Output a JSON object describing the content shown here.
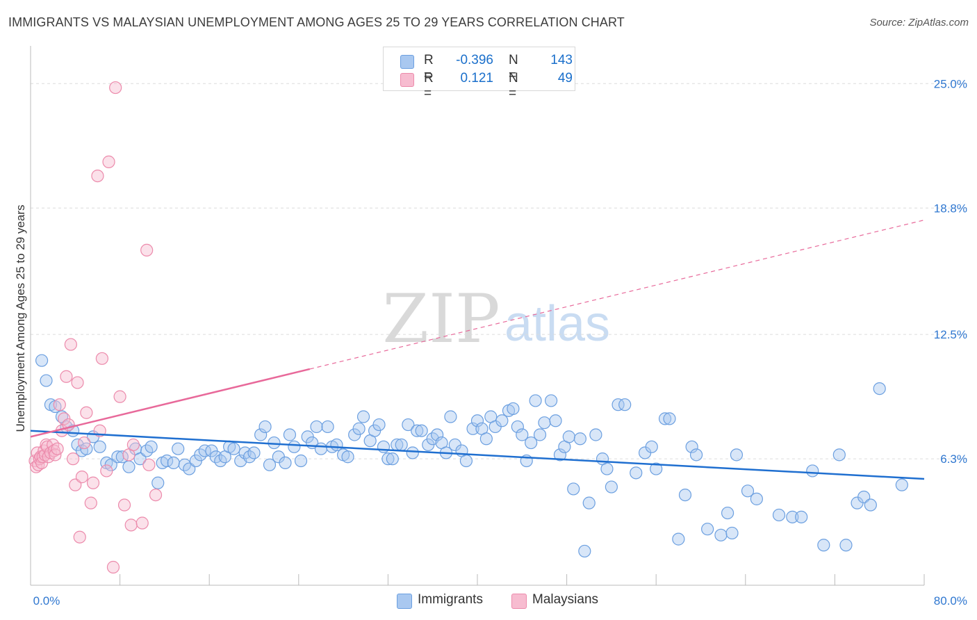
{
  "title": "IMMIGRANTS VS MALAYSIAN UNEMPLOYMENT AMONG AGES 25 TO 29 YEARS CORRELATION CHART",
  "source": "Source: ZipAtlas.com",
  "watermark": {
    "zip": "ZIP",
    "atlas": "atlas"
  },
  "legend": {
    "rows": [
      {
        "r_label": "R =",
        "r_value": "-0.396",
        "n_label": "N =",
        "n_value": "143",
        "color": "#a9c8f0",
        "border": "#6b9fe0"
      },
      {
        "r_label": "R =",
        "r_value": "0.121",
        "n_label": "N =",
        "n_value": "49",
        "color": "#f7bcd0",
        "border": "#ec8aab"
      }
    ]
  },
  "bottom_legend": [
    {
      "label": "Immigrants",
      "color": "#a9c8f0",
      "border": "#6b9fe0"
    },
    {
      "label": "Malaysians",
      "color": "#f7bcd0",
      "border": "#ec8aab"
    }
  ],
  "chart_data": {
    "type": "scatter",
    "title": "IMMIGRANTS VS MALAYSIAN UNEMPLOYMENT AMONG AGES 25 TO 29 YEARS CORRELATION CHART",
    "xlabel": "",
    "ylabel": "Unemployment Among Ages 25 to 29 years",
    "xlim": [
      0,
      80
    ],
    "ylim": [
      0,
      26.5
    ],
    "x_tick_labels": [
      "0.0%",
      "80.0%"
    ],
    "y_ticks": [
      6.3,
      12.5,
      18.8,
      25.0
    ],
    "y_tick_labels": [
      "6.3%",
      "12.5%",
      "18.8%",
      "25.0%"
    ],
    "grid": true,
    "legend_position": "top-center",
    "series": [
      {
        "name": "Immigrants",
        "color": "#6b9fe0",
        "fill": "#a9c8f0",
        "trend": {
          "x0": 0,
          "y0": 7.7,
          "x1": 80,
          "y1": 5.3,
          "dashed_from": 80
        },
        "points": [
          [
            1.0,
            11.2
          ],
          [
            1.4,
            10.2
          ],
          [
            1.8,
            9.0
          ],
          [
            2.2,
            8.9
          ],
          [
            2.8,
            8.4
          ],
          [
            3.2,
            7.9
          ],
          [
            3.8,
            7.7
          ],
          [
            4.2,
            7.0
          ],
          [
            4.6,
            6.7
          ],
          [
            5.0,
            6.8
          ],
          [
            5.6,
            7.4
          ],
          [
            6.2,
            6.9
          ],
          [
            6.8,
            6.1
          ],
          [
            7.2,
            6.0
          ],
          [
            7.8,
            6.4
          ],
          [
            8.2,
            6.4
          ],
          [
            8.8,
            5.9
          ],
          [
            9.4,
            6.8
          ],
          [
            9.8,
            6.3
          ],
          [
            10.4,
            6.7
          ],
          [
            10.8,
            6.9
          ],
          [
            11.4,
            5.1
          ],
          [
            11.8,
            6.1
          ],
          [
            12.2,
            6.2
          ],
          [
            12.8,
            6.1
          ],
          [
            13.2,
            6.8
          ],
          [
            13.8,
            6.0
          ],
          [
            14.2,
            5.8
          ],
          [
            14.8,
            6.2
          ],
          [
            15.2,
            6.5
          ],
          [
            15.6,
            6.7
          ],
          [
            16.2,
            6.7
          ],
          [
            16.6,
            6.4
          ],
          [
            17.0,
            6.2
          ],
          [
            17.4,
            6.4
          ],
          [
            17.8,
            6.9
          ],
          [
            18.2,
            6.8
          ],
          [
            18.8,
            6.2
          ],
          [
            19.2,
            6.6
          ],
          [
            19.6,
            6.4
          ],
          [
            20.0,
            6.6
          ],
          [
            20.6,
            7.5
          ],
          [
            21.0,
            7.9
          ],
          [
            21.4,
            6.0
          ],
          [
            21.8,
            7.1
          ],
          [
            22.2,
            6.4
          ],
          [
            22.8,
            6.1
          ],
          [
            23.2,
            7.5
          ],
          [
            23.6,
            6.9
          ],
          [
            24.2,
            6.2
          ],
          [
            24.8,
            7.4
          ],
          [
            25.2,
            7.1
          ],
          [
            25.6,
            7.9
          ],
          [
            26.0,
            6.8
          ],
          [
            26.6,
            7.9
          ],
          [
            27.0,
            6.9
          ],
          [
            27.4,
            7.0
          ],
          [
            28.0,
            6.5
          ],
          [
            28.4,
            6.4
          ],
          [
            29.0,
            7.5
          ],
          [
            29.4,
            7.8
          ],
          [
            29.8,
            8.4
          ],
          [
            30.4,
            7.2
          ],
          [
            30.8,
            7.7
          ],
          [
            31.2,
            8.0
          ],
          [
            31.6,
            6.9
          ],
          [
            32.0,
            6.3
          ],
          [
            32.4,
            6.3
          ],
          [
            32.8,
            7.0
          ],
          [
            33.2,
            7.0
          ],
          [
            33.8,
            8.0
          ],
          [
            34.2,
            6.6
          ],
          [
            34.6,
            7.7
          ],
          [
            35.0,
            7.7
          ],
          [
            35.6,
            7.0
          ],
          [
            36.0,
            7.3
          ],
          [
            36.4,
            7.5
          ],
          [
            36.8,
            7.1
          ],
          [
            37.2,
            6.6
          ],
          [
            37.6,
            8.4
          ],
          [
            38.0,
            7.0
          ],
          [
            38.6,
            6.7
          ],
          [
            39.0,
            6.2
          ],
          [
            39.6,
            7.8
          ],
          [
            40.0,
            8.2
          ],
          [
            40.4,
            7.8
          ],
          [
            40.8,
            7.3
          ],
          [
            41.2,
            8.4
          ],
          [
            41.6,
            7.9
          ],
          [
            42.2,
            8.2
          ],
          [
            42.8,
            8.7
          ],
          [
            43.2,
            8.8
          ],
          [
            43.6,
            7.9
          ],
          [
            44.0,
            7.5
          ],
          [
            44.4,
            6.2
          ],
          [
            44.8,
            7.1
          ],
          [
            45.2,
            9.2
          ],
          [
            45.6,
            7.5
          ],
          [
            46.0,
            8.1
          ],
          [
            46.6,
            9.2
          ],
          [
            47.0,
            8.2
          ],
          [
            47.4,
            6.5
          ],
          [
            47.8,
            6.9
          ],
          [
            48.2,
            7.4
          ],
          [
            48.6,
            4.8
          ],
          [
            49.2,
            7.3
          ],
          [
            49.6,
            1.7
          ],
          [
            50.0,
            4.1
          ],
          [
            50.6,
            7.5
          ],
          [
            51.2,
            6.3
          ],
          [
            51.6,
            5.8
          ],
          [
            52.0,
            4.9
          ],
          [
            52.6,
            9.0
          ],
          [
            53.2,
            9.0
          ],
          [
            54.2,
            5.6
          ],
          [
            55.0,
            6.6
          ],
          [
            55.6,
            6.9
          ],
          [
            56.0,
            5.8
          ],
          [
            56.8,
            8.3
          ],
          [
            57.2,
            8.3
          ],
          [
            58.0,
            2.3
          ],
          [
            58.6,
            4.5
          ],
          [
            59.2,
            6.9
          ],
          [
            59.6,
            6.5
          ],
          [
            60.6,
            2.8
          ],
          [
            61.8,
            2.5
          ],
          [
            62.4,
            3.6
          ],
          [
            62.8,
            2.6
          ],
          [
            63.2,
            6.5
          ],
          [
            64.2,
            4.7
          ],
          [
            65.0,
            4.3
          ],
          [
            67.0,
            3.5
          ],
          [
            68.2,
            3.4
          ],
          [
            69.0,
            3.4
          ],
          [
            70.0,
            5.7
          ],
          [
            71.0,
            2.0
          ],
          [
            72.4,
            6.5
          ],
          [
            73.0,
            2.0
          ],
          [
            74.0,
            4.1
          ],
          [
            74.6,
            4.4
          ],
          [
            75.2,
            4.0
          ],
          [
            76.0,
            9.8
          ],
          [
            78.0,
            5.0
          ]
        ]
      },
      {
        "name": "Malaysians",
        "color": "#ec8aab",
        "fill": "#f7bcd0",
        "trend": {
          "x0": 0,
          "y0": 7.4,
          "x1": 80,
          "y1": 18.2,
          "dashed_from": 25
        },
        "points": [
          [
            0.4,
            6.2
          ],
          [
            0.5,
            5.9
          ],
          [
            0.6,
            6.6
          ],
          [
            0.7,
            6.0
          ],
          [
            0.8,
            6.3
          ],
          [
            0.9,
            6.4
          ],
          [
            1.0,
            6.1
          ],
          [
            1.1,
            6.4
          ],
          [
            1.2,
            6.7
          ],
          [
            1.3,
            6.5
          ],
          [
            1.4,
            7.0
          ],
          [
            1.5,
            6.9
          ],
          [
            1.6,
            6.4
          ],
          [
            1.8,
            6.6
          ],
          [
            2.0,
            7.0
          ],
          [
            2.1,
            6.7
          ],
          [
            2.2,
            6.5
          ],
          [
            2.4,
            6.8
          ],
          [
            2.6,
            9.0
          ],
          [
            2.8,
            7.7
          ],
          [
            3.0,
            8.3
          ],
          [
            3.2,
            10.4
          ],
          [
            3.4,
            8.0
          ],
          [
            3.6,
            12.0
          ],
          [
            3.8,
            6.3
          ],
          [
            4.0,
            5.0
          ],
          [
            4.2,
            10.1
          ],
          [
            4.4,
            2.4
          ],
          [
            4.6,
            5.4
          ],
          [
            4.8,
            7.1
          ],
          [
            5.0,
            8.6
          ],
          [
            5.4,
            4.1
          ],
          [
            5.6,
            5.1
          ],
          [
            6.0,
            20.4
          ],
          [
            6.2,
            7.7
          ],
          [
            6.4,
            11.3
          ],
          [
            6.8,
            5.7
          ],
          [
            7.0,
            21.1
          ],
          [
            7.4,
            0.9
          ],
          [
            7.6,
            24.8
          ],
          [
            8.0,
            9.4
          ],
          [
            8.4,
            4.0
          ],
          [
            8.8,
            6.5
          ],
          [
            9.0,
            3.0
          ],
          [
            9.2,
            7.0
          ],
          [
            10.0,
            3.1
          ],
          [
            10.4,
            16.7
          ],
          [
            10.6,
            6.0
          ],
          [
            11.2,
            4.5
          ]
        ]
      }
    ]
  }
}
